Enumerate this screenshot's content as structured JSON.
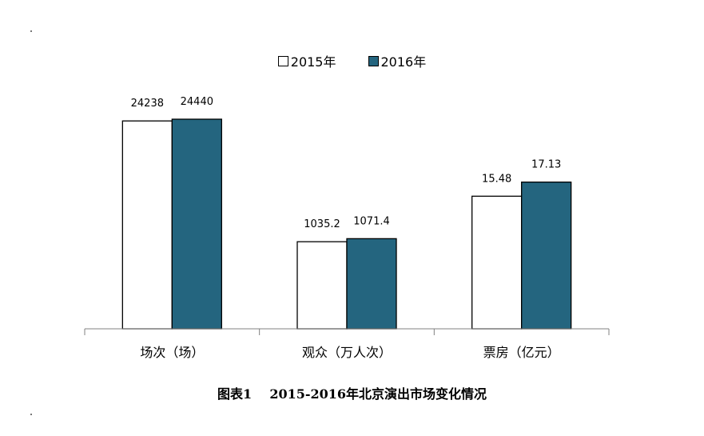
{
  "legend": [
    {
      "label": "2015年",
      "color": "#ffffff"
    },
    {
      "label": "2016年",
      "color": "#24657f"
    }
  ],
  "caption": "图表1    2015-2016年北京演出市场变化情况",
  "chart_data": {
    "type": "bar",
    "categories": [
      "场次（场）",
      "观众（万人次）",
      "票房（亿元）"
    ],
    "series": [
      {
        "name": "2015年",
        "values": [
          24238,
          1035.2,
          15.48
        ],
        "labels": [
          "24238",
          "1035.2",
          "15.48"
        ],
        "color": "#ffffff"
      },
      {
        "name": "2016年",
        "values": [
          24440,
          1071.4,
          17.13
        ],
        "labels": [
          "24440",
          "1071.4",
          "17.13"
        ],
        "color": "#24657f"
      }
    ],
    "legend_position": "top-center",
    "grid": false
  }
}
